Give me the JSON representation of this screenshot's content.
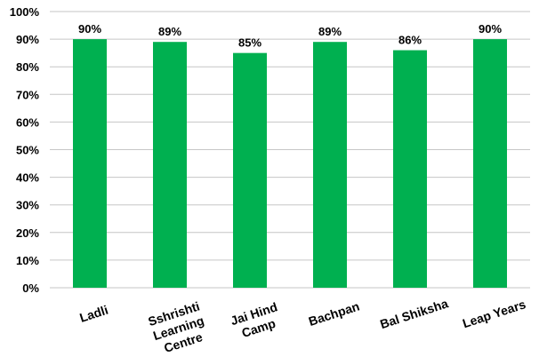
{
  "chart_data": {
    "type": "bar",
    "categories": [
      "Ladli",
      "Sshrishti Learning Centre",
      "Jai Hind Camp",
      "Bachpan",
      "Bal Shiksha",
      "Leap Years"
    ],
    "category_lines": [
      [
        "Ladli"
      ],
      [
        "Sshrishti",
        "Learning",
        "Centre"
      ],
      [
        "Jai Hind",
        "Camp"
      ],
      [
        "Bachpan"
      ],
      [
        "Bal Shiksha"
      ],
      [
        "Leap Years"
      ]
    ],
    "values": [
      90,
      89,
      85,
      89,
      86,
      90
    ],
    "data_labels": [
      "90%",
      "89%",
      "85%",
      "89%",
      "86%",
      "90%"
    ],
    "yticks": [
      "0%",
      "10%",
      "20%",
      "30%",
      "40%",
      "50%",
      "60%",
      "70%",
      "80%",
      "90%",
      "100%"
    ],
    "ylim": [
      0,
      100
    ],
    "grid": true,
    "legend": "none",
    "bar_color": "#00b050",
    "grid_color": "#c6c6c6"
  }
}
